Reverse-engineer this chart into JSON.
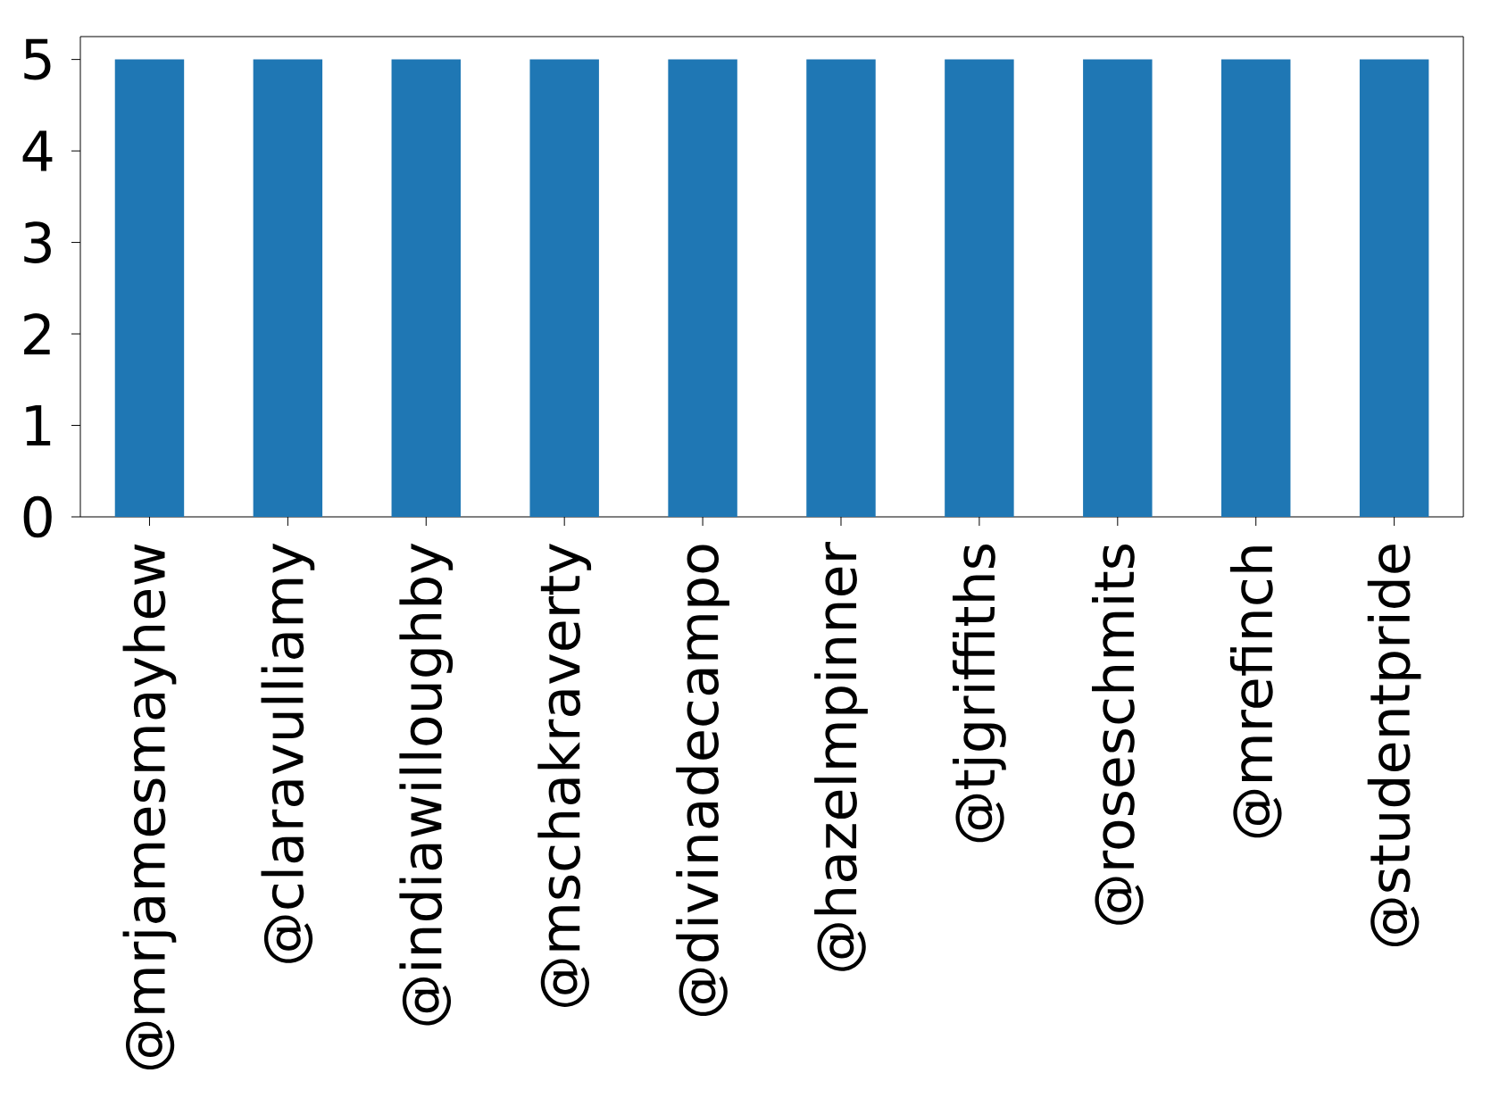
{
  "chart_data": {
    "type": "bar",
    "categories": [
      "@mrjamesmayhew",
      "@claravulliamy",
      "@indiawilloughby",
      "@mschakraverty",
      "@divinadecampo",
      "@hazelmpinner",
      "@tjgriffiths",
      "@roseschmits",
      "@mrefinch",
      "@studentpride"
    ],
    "values": [
      5,
      5,
      5,
      5,
      5,
      5,
      5,
      5,
      5,
      5
    ],
    "color": "#1f77b4",
    "ylim": [
      0,
      5.25
    ],
    "yticks": [
      0,
      1,
      2,
      3,
      4,
      5
    ]
  }
}
